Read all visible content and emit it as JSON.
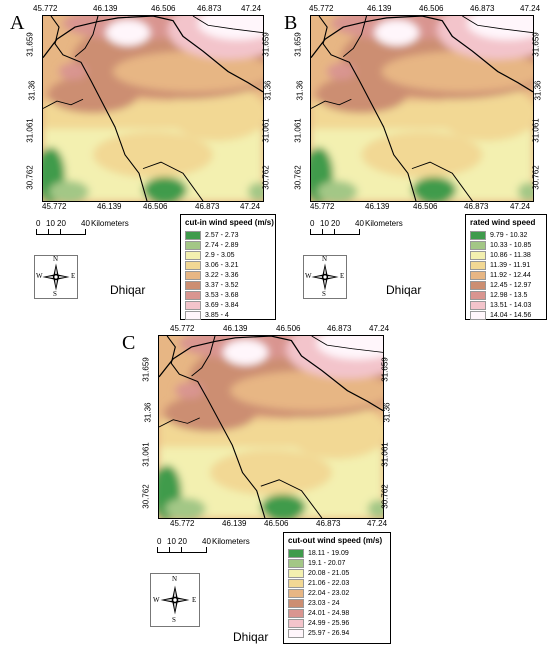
{
  "legend_colors": [
    "#3f9b4c",
    "#a3c786",
    "#f3f0b0",
    "#f2d894",
    "#e7b684",
    "#cc8e72",
    "#d99590",
    "#f3c4cb",
    "#fff6fb"
  ],
  "panels": [
    {
      "letter": "A",
      "lon_ticks": [
        "45.772",
        "46.139",
        "46.506",
        "46.873",
        "47.24"
      ],
      "lat_ticks": [
        "31.659",
        "31.36",
        "31.061",
        "30.762"
      ],
      "legend": {
        "title": "cut-in wind speed (m/s)",
        "items": [
          "2.57 - 2.73",
          "2.74 - 2.89",
          "2.9 - 3.05",
          "3.06 - 3.21",
          "3.22 - 3.36",
          "3.37 - 3.52",
          "3.53 - 3.68",
          "3.69 - 3.84",
          "3.85 - 4"
        ]
      },
      "scalebar": {
        "ticks": [
          "0",
          "10",
          "20",
          "40"
        ],
        "unit": "Kilometers"
      },
      "compass": {
        "n": "N",
        "s": "S",
        "e": "E",
        "w": "W"
      },
      "region_name": "Dhiqar"
    },
    {
      "letter": "B",
      "lon_ticks": [
        "45.772",
        "46.139",
        "46.506",
        "46.873",
        "47.24"
      ],
      "lat_ticks": [
        "31.659",
        "31.36",
        "31.061",
        "30.762"
      ],
      "legend": {
        "title": "rated wind speed",
        "items": [
          "9.79 - 10.32",
          "10.33 - 10.85",
          "10.86 - 11.38",
          "11.39 - 11.91",
          "11.92 - 12.44",
          "12.45 - 12.97",
          "12.98 - 13.5",
          "13.51 - 14.03",
          "14.04 - 14.56"
        ]
      },
      "scalebar": {
        "ticks": [
          "0",
          "10",
          "20",
          "40"
        ],
        "unit": "Kilometers"
      },
      "compass": {
        "n": "N",
        "s": "S",
        "e": "E",
        "w": "W"
      },
      "region_name": "Dhiqar"
    },
    {
      "letter": "C",
      "lon_ticks": [
        "45.772",
        "46.139",
        "46.506",
        "46.873",
        "47.24"
      ],
      "lat_ticks": [
        "31.659",
        "31.36",
        "31.061",
        "30.762"
      ],
      "legend": {
        "title": "cut-out wind speed (m/s)",
        "items": [
          "18.11 - 19.09",
          "19.1 - 20.07",
          "20.08 - 21.05",
          "21.06 - 22.03",
          "22.04 - 23.02",
          "23.03 - 24",
          "24.01 - 24.98",
          "24.99 - 25.96",
          "25.97 - 26.94"
        ]
      },
      "scalebar": {
        "ticks": [
          "0",
          "10",
          "20",
          "40"
        ],
        "unit": "Kilometers"
      },
      "compass": {
        "n": "N",
        "s": "S",
        "e": "E",
        "w": "W"
      },
      "region_name": "Dhiqar"
    }
  ]
}
